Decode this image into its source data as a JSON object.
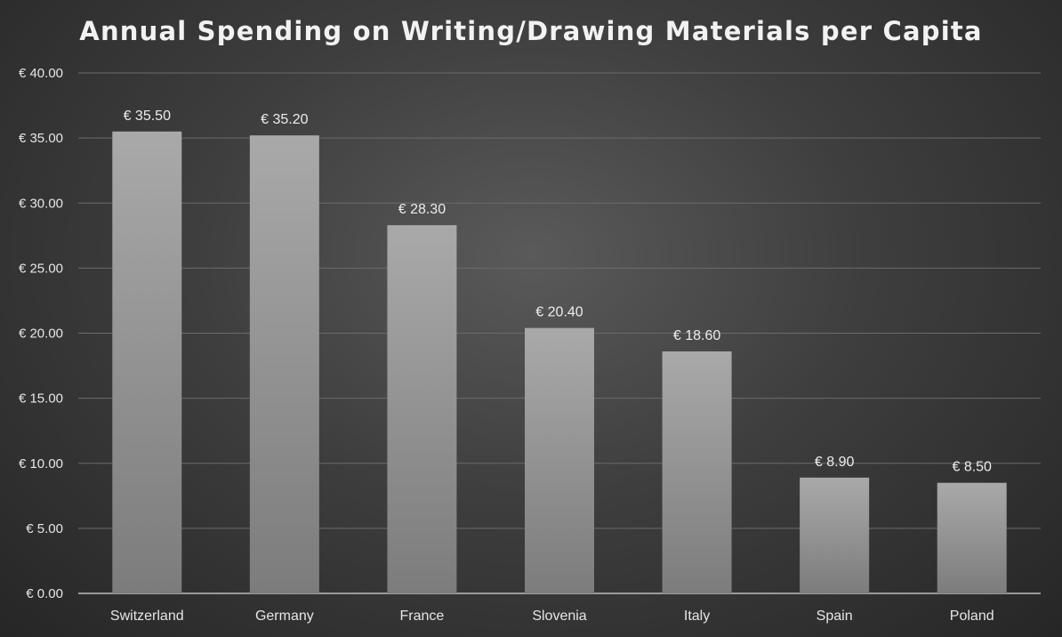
{
  "chart_data": {
    "type": "bar",
    "title": "Annual Spending on Writing/Drawing Materials per Capita",
    "xlabel": "",
    "ylabel": "",
    "categories": [
      "Switzerland",
      "Germany",
      "France",
      "Slovenia",
      "Italy",
      "Spain",
      "Poland"
    ],
    "values": [
      35.5,
      35.2,
      28.3,
      20.4,
      18.6,
      8.9,
      8.5
    ],
    "data_labels": [
      "€ 35.50",
      "€ 35.20",
      "€ 28.30",
      "€ 20.40",
      "€ 18.60",
      "€ 8.90",
      "€ 8.50"
    ],
    "ylim": [
      0,
      40
    ],
    "y_ticks": [
      0,
      5,
      10,
      15,
      20,
      25,
      30,
      35,
      40
    ],
    "y_tick_labels": [
      "€ 0.00",
      "€ 5.00",
      "€ 10.00",
      "€ 15.00",
      "€ 20.00",
      "€ 25.00",
      "€ 30.00",
      "€ 35.00",
      "€ 40.00"
    ],
    "grid": true,
    "legend": "none",
    "colors": {
      "bar_top": "#a9a9a9",
      "bar_bottom": "#7c7c7c",
      "background": "#3e3e3e",
      "text": "#e6e6e6"
    }
  }
}
